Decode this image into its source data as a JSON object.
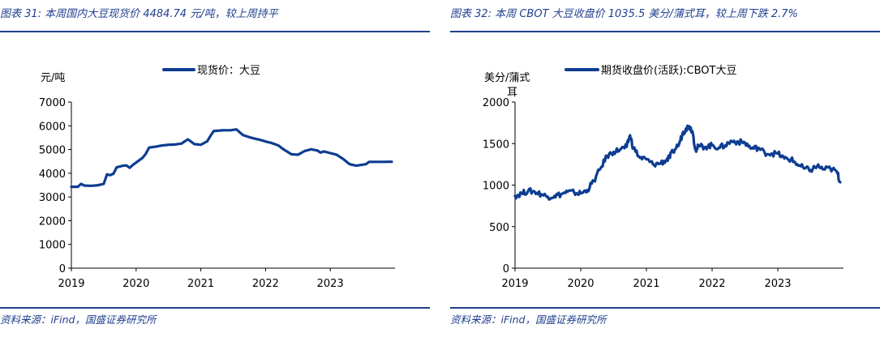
{
  "colors": {
    "series": "#0d3d91",
    "accent": "#1f3f8f",
    "axis": "#000000"
  },
  "charts": [
    {
      "fig_title": "图表 31:  本周国内大豆现货价 4484.74 元/吨，较上周持平",
      "source": "资料来源：iFind，国盛证券研究所",
      "chart_data": {
        "type": "line",
        "title": "",
        "ylabel": "元/吨",
        "legend": "现货价：大豆",
        "ylim": [
          0,
          7000
        ],
        "yticks": [
          "0",
          "1000",
          "2000",
          "3000",
          "4000",
          "5000",
          "6000",
          "7000"
        ],
        "xlim": [
          2019.0,
          2024.0
        ],
        "xticks": [
          "2019",
          "2020",
          "2021",
          "2022",
          "2023"
        ],
        "series": [
          {
            "name": "现货价：大豆",
            "x": [
              2019.0,
              2019.1,
              2019.15,
              2019.2,
              2019.3,
              2019.4,
              2019.5,
              2019.55,
              2019.6,
              2019.65,
              2019.7,
              2019.8,
              2019.85,
              2019.9,
              2019.95,
              2020.0,
              2020.1,
              2020.15,
              2020.2,
              2020.3,
              2020.4,
              2020.5,
              2020.6,
              2020.7,
              2020.8,
              2020.9,
              2021.0,
              2021.1,
              2021.15,
              2021.2,
              2021.25,
              2021.35,
              2021.45,
              2021.55,
              2021.65,
              2021.75,
              2021.8,
              2021.9,
              2022.0,
              2022.1,
              2022.2,
              2022.25,
              2022.3,
              2022.4,
              2022.5,
              2022.6,
              2022.7,
              2022.8,
              2022.85,
              2022.9,
              2023.0,
              2023.1,
              2023.2,
              2023.3,
              2023.4,
              2023.5,
              2023.55,
              2023.6,
              2023.7,
              2023.8,
              2023.95
            ],
            "values": [
              3430,
              3430,
              3550,
              3480,
              3470,
              3490,
              3550,
              3950,
              3920,
              3980,
              4250,
              4320,
              4330,
              4230,
              4350,
              4450,
              4650,
              4820,
              5080,
              5120,
              5170,
              5200,
              5210,
              5250,
              5430,
              5230,
              5200,
              5350,
              5580,
              5780,
              5790,
              5810,
              5810,
              5850,
              5610,
              5520,
              5480,
              5420,
              5340,
              5270,
              5170,
              5060,
              4970,
              4800,
              4780,
              4930,
              5010,
              4960,
              4870,
              4920,
              4850,
              4780,
              4600,
              4380,
              4320,
              4360,
              4380,
              4480,
              4480,
              4480,
              4485
            ]
          }
        ]
      }
    },
    {
      "fig_title": "图表 32:  本周 CBOT 大豆收盘价 1035.5 美分/蒲式耳，较上周下跌 2.7%",
      "source": "资料来源：iFind，国盛证券研究所",
      "chart_data": {
        "type": "line",
        "title": "",
        "ylabel": "美分/蒲式耳",
        "legend": "期货收盘价(活跃):CBOT大豆",
        "ylim": [
          0,
          2000
        ],
        "yticks": [
          "0",
          "500",
          "1000",
          "1500",
          "2000"
        ],
        "xlim": [
          2019.0,
          2024.0
        ],
        "xticks": [
          "2019",
          "2020",
          "2021",
          "2022",
          "2023"
        ],
        "series": [
          {
            "name": "期货收盘价(活跃):CBOT大豆",
            "x": [
              2019.0,
              2019.1,
              2019.2,
              2019.3,
              2019.4,
              2019.5,
              2019.6,
              2019.7,
              2019.8,
              2019.9,
              2020.0,
              2020.1,
              2020.2,
              2020.3,
              2020.4,
              2020.5,
              2020.6,
              2020.7,
              2020.75,
              2020.8,
              2020.9,
              2021.0,
              2021.1,
              2021.2,
              2021.3,
              2021.35,
              2021.4,
              2021.5,
              2021.55,
              2021.6,
              2021.65,
              2021.7,
              2021.75,
              2021.8,
              2021.9,
              2022.0,
              2022.1,
              2022.2,
              2022.3,
              2022.4,
              2022.5,
              2022.6,
              2022.7,
              2022.8,
              2022.9,
              2023.0,
              2023.1,
              2023.2,
              2023.3,
              2023.4,
              2023.5,
              2023.6,
              2023.7,
              2023.8,
              2023.9,
              2023.95
            ],
            "values": [
              870,
              900,
              930,
              920,
              890,
              860,
              870,
              890,
              920,
              910,
              900,
              940,
              1050,
              1200,
              1350,
              1400,
              1430,
              1460,
              1600,
              1450,
              1330,
              1310,
              1250,
              1260,
              1300,
              1330,
              1400,
              1500,
              1620,
              1680,
              1710,
              1650,
              1420,
              1470,
              1460,
              1480,
              1450,
              1480,
              1530,
              1520,
              1510,
              1440,
              1450,
              1390,
              1380,
              1380,
              1320,
              1310,
              1250,
              1200,
              1180,
              1230,
              1190,
              1200,
              1160,
              1035
            ]
          }
        ]
      }
    }
  ]
}
